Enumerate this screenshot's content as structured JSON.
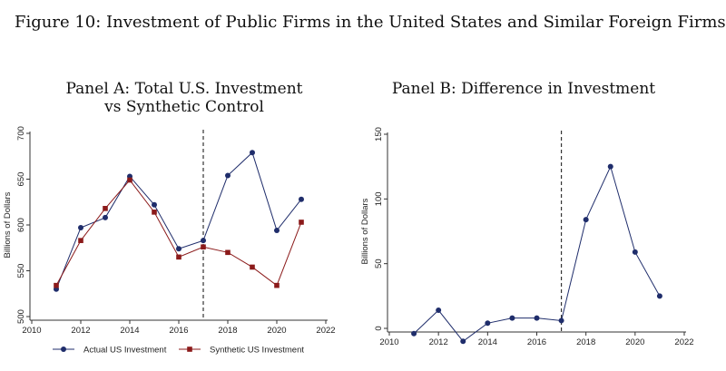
{
  "figure_title": "Figure 10: Investment of Public Firms in the United States and Similar Foreign Firms",
  "chart_data": [
    {
      "type": "line",
      "title": "Panel A: Total U.S. Investment",
      "subtitle": "vs Synthetic Control",
      "xlabel": "",
      "ylabel": "Billions of Dollars",
      "xlim": [
        2010,
        2022
      ],
      "ylim": [
        500,
        700
      ],
      "xticks": [
        2010,
        2012,
        2014,
        2016,
        2018,
        2020,
        2022
      ],
      "yticks": [
        500,
        550,
        600,
        650,
        700
      ],
      "grid": false,
      "vline_x": 2017,
      "legend": "bottom",
      "x": [
        2011,
        2012,
        2013,
        2014,
        2015,
        2016,
        2017,
        2018,
        2019,
        2020,
        2021
      ],
      "series": [
        {
          "name": "Actual US Investment",
          "color": "#1f2d6b",
          "marker": "circle",
          "values": [
            530,
            597,
            608,
            653,
            622,
            574,
            583,
            654,
            679,
            594,
            628
          ]
        },
        {
          "name": "Synthetic US Investment",
          "color": "#8b1a1a",
          "marker": "square",
          "values": [
            534,
            583,
            618,
            649,
            614,
            565,
            576,
            570,
            554,
            534,
            603
          ]
        }
      ]
    },
    {
      "type": "line",
      "title": "Panel B: Difference in Investment",
      "xlabel": "",
      "ylabel": "Billions of Dollars",
      "xlim": [
        2010,
        2022
      ],
      "ylim": [
        0,
        150
      ],
      "xticks": [
        2010,
        2012,
        2014,
        2016,
        2018,
        2020,
        2022
      ],
      "yticks": [
        0,
        50,
        100,
        150
      ],
      "grid": false,
      "vline_x": 2017,
      "x": [
        2011,
        2012,
        2013,
        2014,
        2015,
        2016,
        2017,
        2018,
        2019,
        2020,
        2021
      ],
      "series": [
        {
          "color": "#1f2d6b",
          "marker": "circle",
          "values": [
            -4,
            14,
            -10,
            4,
            8,
            8,
            6,
            84,
            125,
            59,
            25
          ]
        }
      ]
    }
  ]
}
